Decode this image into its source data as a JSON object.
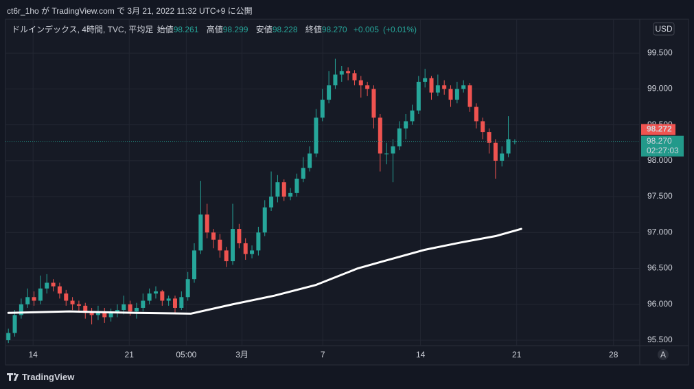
{
  "header": "ct6r_1ho が TradingView.com で 3月 21, 2022 11:32 UTC+9 に公開",
  "currency_button": "USD",
  "auto_button": "A",
  "brand": "TradingView",
  "chart_data": {
    "type": "candlestick",
    "legend": {
      "name": "ドルインデックス, 4時間, TVC, 平均足",
      "open_label": "始値",
      "open": 98.261,
      "high_label": "高値",
      "high": 98.299,
      "low_label": "安値",
      "low": 98.228,
      "close_label": "終値",
      "close": {
        "value": 98.27,
        "label": "98.270"
      },
      "change": {
        "value": 0.005,
        "label": "+0.005"
      },
      "change_pct": {
        "value": 0.01,
        "label": "(+0.01%)"
      }
    },
    "up_color": "#26a69a",
    "down_color": "#ef5350",
    "x": [
      0,
      2,
      4,
      6,
      8,
      10,
      12,
      14,
      16,
      18,
      20,
      22,
      24,
      26,
      28,
      30,
      32,
      34,
      36,
      38,
      40,
      42,
      44,
      46,
      48,
      50,
      52,
      54,
      56,
      58,
      60,
      62,
      64,
      66,
      68,
      70,
      72,
      74,
      76,
      78,
      80,
      82,
      84,
      86,
      88,
      90,
      92,
      94,
      96,
      98,
      100,
      102,
      104,
      106,
      108,
      110,
      112,
      114,
      116,
      118,
      120,
      122,
      124,
      126,
      128,
      130,
      132,
      134,
      136,
      138,
      140,
      142,
      144,
      146,
      148,
      150,
      152,
      154,
      156,
      158
    ],
    "open": [
      95.5,
      95.6,
      95.85,
      96.0,
      96.1,
      96.05,
      96.22,
      96.3,
      96.25,
      96.15,
      96.05,
      96.0,
      95.98,
      95.88,
      95.85,
      95.9,
      95.82,
      95.88,
      95.92,
      96.0,
      95.9,
      95.95,
      96.05,
      96.15,
      96.18,
      96.05,
      96.08,
      95.95,
      96.1,
      96.35,
      96.75,
      97.25,
      97.0,
      96.9,
      96.75,
      96.6,
      97.05,
      96.85,
      96.7,
      96.75,
      97.0,
      97.35,
      97.5,
      97.7,
      97.5,
      97.55,
      97.75,
      97.9,
      98.1,
      98.6,
      98.85,
      99.05,
      99.2,
      99.25,
      99.22,
      99.12,
      99.05,
      99.0,
      98.6,
      98.1,
      98.1,
      98.2,
      98.45,
      98.55,
      98.7,
      99.1,
      99.15,
      98.95,
      99.05,
      99.0,
      98.85,
      99.0,
      99.05,
      98.75,
      98.55,
      98.4,
      98.25,
      98.0,
      98.1,
      98.261
    ],
    "high": [
      95.66,
      95.92,
      96.08,
      96.22,
      96.18,
      96.4,
      96.42,
      96.35,
      96.3,
      96.2,
      96.1,
      96.05,
      96.02,
      95.95,
      95.98,
      95.95,
      95.94,
      96.0,
      96.12,
      96.05,
      96.02,
      96.15,
      96.22,
      96.25,
      96.2,
      96.12,
      96.12,
      96.18,
      96.45,
      96.85,
      97.72,
      97.4,
      97.05,
      96.98,
      96.8,
      97.4,
      97.12,
      96.92,
      96.82,
      97.08,
      97.45,
      97.85,
      97.8,
      97.74,
      97.62,
      97.82,
      98.05,
      98.2,
      98.72,
      99.0,
      99.25,
      99.42,
      99.32,
      99.3,
      99.26,
      99.18,
      99.1,
      99.05,
      98.65,
      98.25,
      98.3,
      98.55,
      98.65,
      98.78,
      99.18,
      99.28,
      99.18,
      99.2,
      99.12,
      99.05,
      99.1,
      99.12,
      99.08,
      98.8,
      98.6,
      98.45,
      98.3,
      98.2,
      98.62,
      98.299
    ],
    "low": [
      95.46,
      95.55,
      95.8,
      95.95,
      95.98,
      96.0,
      96.15,
      96.18,
      96.08,
      95.98,
      95.92,
      95.9,
      95.8,
      95.72,
      95.78,
      95.74,
      95.76,
      95.82,
      95.86,
      95.84,
      95.8,
      95.9,
      96.0,
      96.08,
      95.98,
      95.98,
      95.88,
      95.92,
      96.05,
      96.3,
      96.7,
      96.92,
      96.78,
      96.65,
      96.52,
      96.55,
      96.78,
      96.62,
      96.64,
      96.68,
      96.95,
      97.3,
      97.42,
      97.44,
      97.45,
      97.5,
      97.7,
      97.85,
      98.05,
      98.55,
      98.8,
      99.0,
      99.1,
      99.12,
      99.05,
      98.88,
      98.9,
      98.45,
      97.85,
      97.95,
      97.7,
      98.15,
      98.3,
      98.5,
      98.65,
      99.02,
      98.85,
      98.9,
      98.92,
      98.75,
      98.8,
      98.95,
      98.68,
      98.45,
      98.3,
      98.1,
      97.75,
      97.92,
      98.05,
      98.228
    ],
    "close": [
      95.6,
      95.85,
      96.0,
      96.1,
      96.05,
      96.22,
      96.3,
      96.25,
      96.15,
      96.05,
      96.0,
      95.98,
      95.88,
      95.85,
      95.9,
      95.82,
      95.88,
      95.92,
      96.0,
      95.9,
      95.95,
      96.05,
      96.15,
      96.18,
      96.05,
      96.08,
      95.95,
      96.1,
      96.35,
      96.75,
      97.25,
      97.0,
      96.9,
      96.75,
      96.6,
      97.05,
      96.85,
      96.7,
      96.75,
      97.0,
      97.35,
      97.5,
      97.7,
      97.5,
      97.55,
      97.75,
      97.9,
      98.1,
      98.6,
      98.85,
      99.05,
      99.2,
      99.25,
      99.22,
      99.12,
      99.05,
      99.0,
      98.6,
      98.1,
      98.1,
      98.2,
      98.45,
      98.55,
      98.7,
      99.1,
      99.15,
      98.95,
      99.05,
      99.0,
      98.85,
      99.0,
      99.05,
      98.75,
      98.55,
      98.4,
      98.25,
      98.0,
      98.1,
      98.3,
      98.27
    ],
    "moving_average": {
      "color": "#ffffff",
      "x": [
        0,
        19,
        40,
        57,
        70,
        83,
        96,
        109,
        117,
        130,
        141,
        152,
        160
      ],
      "values": [
        95.88,
        95.9,
        95.88,
        95.87,
        96.0,
        96.12,
        96.27,
        96.5,
        96.6,
        96.76,
        96.86,
        96.95,
        97.05
      ]
    },
    "xlim": [
      -0.9,
      197
    ],
    "ylim": [
      95.423,
      99.971
    ],
    "xticks": [
      {
        "value": 7.7,
        "label": "14"
      },
      {
        "value": 37.7,
        "label": "21"
      },
      {
        "value": 55.5,
        "label": "05:00"
      },
      {
        "value": 72.9,
        "label": "3月"
      },
      {
        "value": 98.1,
        "label": "7"
      },
      {
        "value": 128.6,
        "label": "14"
      },
      {
        "value": 158.6,
        "label": "21"
      },
      {
        "value": 188.8,
        "label": "28"
      }
    ],
    "yticks": [
      {
        "value": 95.5,
        "label": "95.500"
      },
      {
        "value": 96,
        "label": "96.000"
      },
      {
        "value": 96.5,
        "label": "96.500"
      },
      {
        "value": 97,
        "label": "97.000"
      },
      {
        "value": 97.5,
        "label": "97.500"
      },
      {
        "value": 98,
        "label": "98.000"
      },
      {
        "value": 98.5,
        "label": "98.500"
      },
      {
        "value": 99,
        "label": "99.000"
      },
      {
        "value": 99.5,
        "label": "99.500"
      }
    ],
    "grid": true,
    "price_marker": {
      "value": 98.27,
      "label": "98.270",
      "countdown": "02:27:03",
      "color": "#22998a"
    },
    "bid_marker": {
      "value": 98.272,
      "label": "98.272",
      "color": "#ef5350"
    }
  }
}
